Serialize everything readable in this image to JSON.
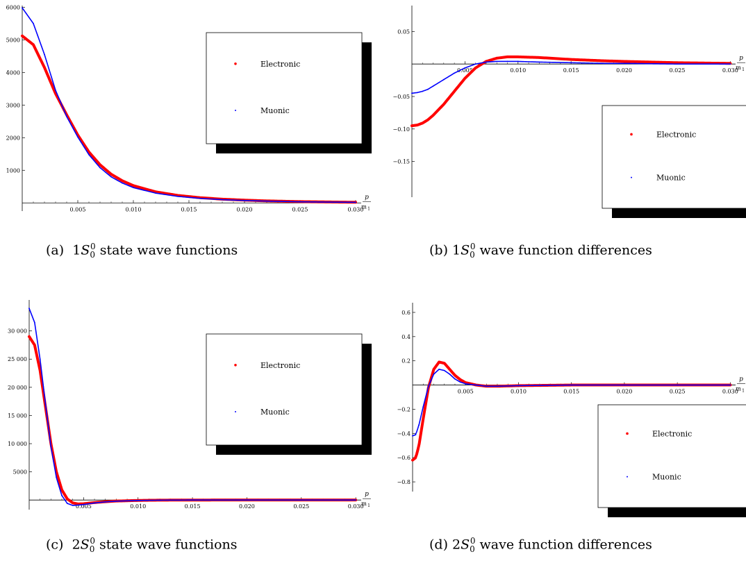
{
  "chart_data": [
    {
      "type": "line",
      "caption": {
        "label": "(a)",
        "state_main": "1",
        "state_letter": "S",
        "state_sub": "0",
        "state_sup": "0",
        "rest": "state wave functions"
      },
      "xlabel_top": "p",
      "xlabel_bottom": "m",
      "xlabel_bottom_sub": "1",
      "xlim": [
        0,
        0.0305
      ],
      "ylim": [
        -250,
        6050
      ],
      "xticks": [
        0.005,
        0.01,
        0.015,
        0.02,
        0.025,
        0.03
      ],
      "xtick_labels": [
        "0.005",
        "0.010",
        "0.015",
        "0.020",
        "0.025",
        "0.030"
      ],
      "yticks": [
        1000,
        2000,
        3000,
        4000,
        5000,
        6000
      ],
      "ytick_labels": [
        "1000",
        "2000",
        "3000",
        "4000",
        "5000",
        "6000"
      ],
      "legend": [
        {
          "name": "Electronic",
          "color": "#ff0000"
        },
        {
          "name": "Muonic",
          "color": "#0000ff"
        }
      ],
      "legend_position": "top-right",
      "series": [
        {
          "name": "Electronic",
          "color": "#ff0000",
          "x": [
            0,
            0.001,
            0.002,
            0.003,
            0.004,
            0.005,
            0.006,
            0.007,
            0.008,
            0.009,
            0.01,
            0.012,
            0.014,
            0.016,
            0.018,
            0.02,
            0.022,
            0.025,
            0.028,
            0.03
          ],
          "y": [
            5120,
            4850,
            4150,
            3350,
            2700,
            2080,
            1560,
            1170,
            880,
            680,
            530,
            340,
            230,
            160,
            115,
            85,
            62,
            40,
            27,
            20
          ]
        },
        {
          "name": "Muonic",
          "color": "#0000ff",
          "x": [
            0,
            0.001,
            0.002,
            0.003,
            0.004,
            0.005,
            0.006,
            0.007,
            0.008,
            0.009,
            0.01,
            0.012,
            0.014,
            0.016,
            0.018,
            0.02,
            0.022,
            0.025,
            0.028,
            0.03
          ],
          "y": [
            5980,
            5500,
            4550,
            3450,
            2650,
            2020,
            1480,
            1080,
            800,
            610,
            470,
            300,
            200,
            140,
            100,
            74,
            55,
            35,
            24,
            18
          ]
        }
      ]
    },
    {
      "type": "line",
      "caption": {
        "label": "(b)",
        "state_main": "1",
        "state_letter": "S",
        "state_sub": "0",
        "state_sup": "0",
        "rest": "wave function differences"
      },
      "xlabel_top": "p",
      "xlabel_bottom": "m",
      "xlabel_bottom_sub": "1",
      "xlim": [
        0,
        0.0305
      ],
      "ylim": [
        -0.205,
        0.09
      ],
      "xticks": [
        0.005,
        0.01,
        0.015,
        0.02,
        0.025,
        0.03
      ],
      "xtick_labels": [
        "0.005",
        "0.010",
        "0.015",
        "0.020",
        "0.025",
        "0.030"
      ],
      "yticks": [
        -0.15,
        -0.1,
        -0.05,
        0.05
      ],
      "ytick_labels": [
        "−0.15",
        "−0.10",
        "−0.05",
        "0.05"
      ],
      "legend": [
        {
          "name": "Electronic",
          "color": "#ff0000"
        },
        {
          "name": "Muonic",
          "color": "#0000ff"
        }
      ],
      "legend_position": "bottom-right",
      "series": [
        {
          "name": "Electronic",
          "color": "#ff0000",
          "x": [
            0,
            0.0005,
            0.001,
            0.0015,
            0.002,
            0.003,
            0.004,
            0.005,
            0.006,
            0.007,
            0.008,
            0.009,
            0.01,
            0.012,
            0.015,
            0.018,
            0.02,
            0.025,
            0.03
          ],
          "y": [
            -0.095,
            -0.094,
            -0.091,
            -0.086,
            -0.079,
            -0.062,
            -0.042,
            -0.022,
            -0.006,
            0.004,
            0.009,
            0.011,
            0.011,
            0.01,
            0.007,
            0.005,
            0.004,
            0.002,
            0.001
          ]
        },
        {
          "name": "Muonic",
          "color": "#0000ff",
          "x": [
            0,
            0.0005,
            0.001,
            0.0015,
            0.002,
            0.003,
            0.004,
            0.005,
            0.006,
            0.007,
            0.008,
            0.009,
            0.01,
            0.012,
            0.015,
            0.018,
            0.02,
            0.025,
            0.03
          ],
          "y": [
            -0.045,
            -0.044,
            -0.042,
            -0.039,
            -0.034,
            -0.024,
            -0.014,
            -0.006,
            0.0,
            0.003,
            0.004,
            0.004,
            0.004,
            0.003,
            0.002,
            0.001,
            0.001,
            0.0,
            0.0
          ]
        }
      ]
    },
    {
      "type": "line",
      "caption": {
        "label": "(c)",
        "state_main": "2",
        "state_letter": "S",
        "state_sub": "0",
        "state_sup": "0",
        "rest": "state wave functions"
      },
      "xlabel_top": "p",
      "xlabel_bottom": "m",
      "xlabel_bottom_sub": "1",
      "xlim": [
        0,
        0.0305
      ],
      "ylim": [
        -1700,
        35500
      ],
      "xticks": [
        0.005,
        0.01,
        0.015,
        0.02,
        0.025,
        0.03
      ],
      "xtick_labels": [
        "0.005",
        "0.010",
        "0.015",
        "0.020",
        "0.025",
        "0.030"
      ],
      "yticks": [
        5000,
        10000,
        15000,
        20000,
        25000,
        30000
      ],
      "ytick_labels": [
        "5000",
        "10 000",
        "15 000",
        "20 000",
        "25 000",
        "30 000"
      ],
      "legend": [
        {
          "name": "Electronic",
          "color": "#ff0000"
        },
        {
          "name": "Muonic",
          "color": "#0000ff"
        }
      ],
      "legend_position": "top-right",
      "series": [
        {
          "name": "Electronic",
          "color": "#ff0000",
          "x": [
            0,
            0.0005,
            0.001,
            0.0015,
            0.002,
            0.0025,
            0.003,
            0.0035,
            0.004,
            0.0045,
            0.005,
            0.006,
            0.007,
            0.008,
            0.01,
            0.012,
            0.015,
            0.02,
            0.025,
            0.03
          ],
          "y": [
            29000,
            27500,
            23000,
            16500,
            10000,
            5000,
            1800,
            200,
            -500,
            -700,
            -650,
            -450,
            -300,
            -180,
            -70,
            -20,
            0,
            5,
            3,
            2
          ]
        },
        {
          "name": "Muonic",
          "color": "#0000ff",
          "x": [
            0,
            0.0005,
            0.001,
            0.0015,
            0.002,
            0.0025,
            0.003,
            0.0035,
            0.004,
            0.0045,
            0.005,
            0.006,
            0.007,
            0.008,
            0.01,
            0.012,
            0.015,
            0.02,
            0.025,
            0.03
          ],
          "y": [
            34000,
            31500,
            25000,
            17000,
            9500,
            4000,
            800,
            -600,
            -950,
            -900,
            -800,
            -520,
            -330,
            -200,
            -80,
            -25,
            0,
            5,
            3,
            2
          ]
        }
      ]
    },
    {
      "type": "line",
      "caption": {
        "label": "(d)",
        "state_main": "2",
        "state_letter": "S",
        "state_sub": "0",
        "state_sup": "0",
        "rest": "wave function differences"
      },
      "xlabel_top": "p",
      "xlabel_bottom": "m",
      "xlabel_bottom_sub": "1",
      "xlim": [
        0,
        0.0305
      ],
      "ylim": [
        -0.88,
        0.68
      ],
      "xticks": [
        0.005,
        0.01,
        0.015,
        0.02,
        0.025,
        0.03
      ],
      "xtick_labels": [
        "0.005",
        "0.010",
        "0.015",
        "0.020",
        "0.025",
        "0.030"
      ],
      "yticks": [
        -0.8,
        -0.6,
        -0.4,
        -0.2,
        0.2,
        0.4,
        0.6
      ],
      "ytick_labels": [
        "−0.8",
        "−0.6",
        "−0.4",
        "−0.2",
        "0.2",
        "0.4",
        "0.6"
      ],
      "legend": [
        {
          "name": "Electronic",
          "color": "#ff0000"
        },
        {
          "name": "Muonic",
          "color": "#0000ff"
        }
      ],
      "legend_position": "bottom-right",
      "series": [
        {
          "name": "Electronic",
          "color": "#ff0000",
          "x": [
            0,
            0.0003,
            0.0006,
            0.001,
            0.0015,
            0.002,
            0.0025,
            0.003,
            0.0035,
            0.004,
            0.0045,
            0.005,
            0.006,
            0.007,
            0.008,
            0.01,
            0.015,
            0.02,
            0.025,
            0.03
          ],
          "y": [
            -0.62,
            -0.6,
            -0.5,
            -0.28,
            -0.02,
            0.13,
            0.19,
            0.18,
            0.13,
            0.08,
            0.045,
            0.02,
            0.0,
            -0.01,
            -0.01,
            -0.005,
            0.0,
            0.0,
            0.0,
            0.0
          ]
        },
        {
          "name": "Muonic",
          "color": "#0000ff",
          "x": [
            0,
            0.0003,
            0.0006,
            0.001,
            0.0015,
            0.002,
            0.0025,
            0.003,
            0.0035,
            0.004,
            0.0045,
            0.005,
            0.006,
            0.007,
            0.008,
            0.01,
            0.015,
            0.02,
            0.025,
            0.03
          ],
          "y": [
            -0.42,
            -0.41,
            -0.33,
            -0.18,
            -0.01,
            0.09,
            0.13,
            0.12,
            0.09,
            0.05,
            0.025,
            0.01,
            0.0,
            -0.01,
            -0.01,
            -0.005,
            0.0,
            0.0,
            0.0,
            0.0
          ]
        }
      ]
    }
  ]
}
